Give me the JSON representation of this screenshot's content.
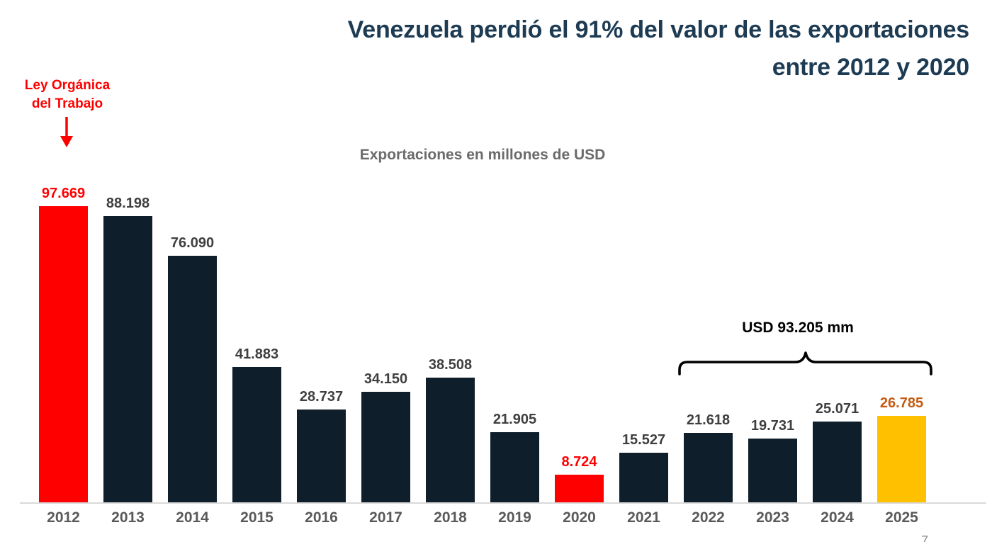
{
  "slide": {
    "title_line1": "Venezuela perdió el 91% del valor de las exportaciones",
    "title_line2": "entre 2012 y 2020",
    "page_marker": "7"
  },
  "annotations": {
    "law_line1": "Ley Orgánica",
    "law_line2": "del Trabajo",
    "law_arrow_icon": "red-down-arrow",
    "bracket_label": "USD 93.205 mm"
  },
  "colors": {
    "title": "#1d3b53",
    "bar_default": "#0e1e2a",
    "bar_highlight_red": "#ff0000",
    "bar_highlight_yellow": "#ffc000",
    "value_label": "#3f3f3f",
    "value_label_red": "#ff0000",
    "value_label_orange": "#c55a11",
    "year_label": "#595959",
    "subtitle": "#6b6b6b",
    "axis_line": "#d9d9d9",
    "annotation_red": "#ff0000",
    "bracket": "#000000"
  },
  "chart_data": {
    "type": "bar",
    "title": "Exportaciones en millones de USD",
    "categories": [
      "2012",
      "2013",
      "2014",
      "2015",
      "2016",
      "2017",
      "2018",
      "2019",
      "2020",
      "2021",
      "2022",
      "2023",
      "2024",
      "2025"
    ],
    "values": [
      97669,
      88198,
      76090,
      41883,
      28737,
      34150,
      38508,
      21905,
      8724,
      15527,
      21618,
      19731,
      25071,
      26785
    ],
    "value_labels": [
      "97.669",
      "88.198",
      "76.090",
      "41.883",
      "28.737",
      "34.150",
      "38.508",
      "21.905",
      "8.724",
      "15.527",
      "21.618",
      "19.731",
      "25.071",
      "26.785"
    ],
    "bar_color_keys": [
      "red",
      "default",
      "default",
      "default",
      "default",
      "default",
      "default",
      "default",
      "red",
      "default",
      "default",
      "default",
      "default",
      "yellow"
    ],
    "xlabel": "",
    "ylabel": "",
    "ylim": [
      0,
      100000
    ],
    "grid": false,
    "legend": null,
    "data_labels": true,
    "bracket_group": {
      "from": "2022",
      "to": "2025",
      "label": "USD 93.205 mm",
      "sum": 93205
    }
  }
}
